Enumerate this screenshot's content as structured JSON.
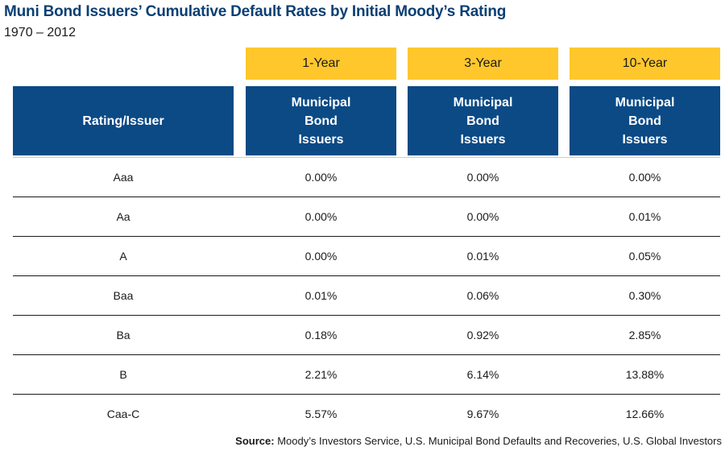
{
  "chart_data": {
    "type": "table",
    "title": "Muni Bond Issuers’ Cumulative Default Rates by Initial Moody’s Rating",
    "subtitle": "1970 – 2012",
    "periods": [
      "1-Year",
      "3-Year",
      "10-Year"
    ],
    "header": {
      "rating_label": "Rating/Issuer",
      "issuer_lines": [
        "Municipal",
        "Bond",
        "Issuers"
      ]
    },
    "rows": [
      {
        "rating": "Aaa",
        "values": [
          "0.00%",
          "0.00%",
          "0.00%"
        ]
      },
      {
        "rating": "Aa",
        "values": [
          "0.00%",
          "0.00%",
          "0.01%"
        ]
      },
      {
        "rating": "A",
        "values": [
          "0.00%",
          "0.01%",
          "0.05%"
        ]
      },
      {
        "rating": "Baa",
        "values": [
          "0.01%",
          "0.06%",
          "0.30%"
        ]
      },
      {
        "rating": "Ba",
        "values": [
          "0.18%",
          "0.92%",
          "2.85%"
        ]
      },
      {
        "rating": "B",
        "values": [
          "2.21%",
          "6.14%",
          "13.88%"
        ]
      },
      {
        "rating": "Caa-C",
        "values": [
          "5.57%",
          "9.67%",
          "12.66%"
        ]
      }
    ],
    "source_label": "Source:",
    "source_text": "Moody’s Investors Service, U.S. Municipal Bond Defaults and Recoveries, U.S. Global Investors"
  },
  "colors": {
    "title": "#0b3f73",
    "period_header": "#ffc72c",
    "column_header": "#0b4a85"
  }
}
